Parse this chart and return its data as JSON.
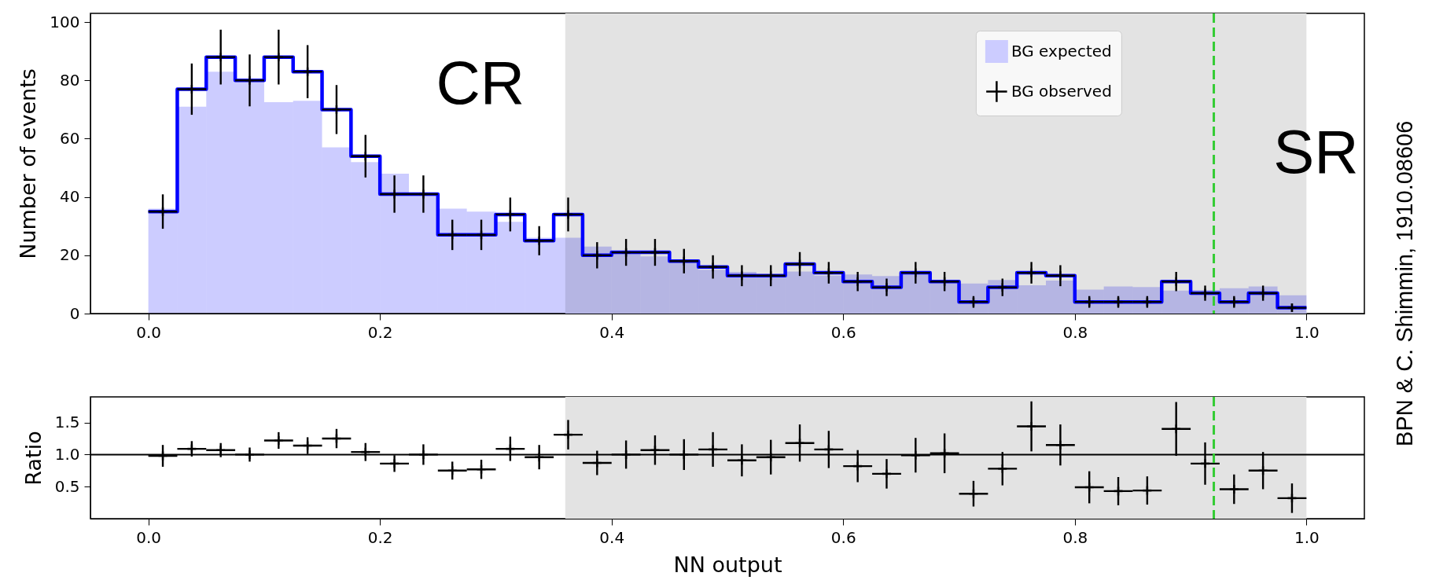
{
  "chart_data": [
    {
      "type": "histogram",
      "ylabel": "Number of events",
      "legend": "top right",
      "bins": [
        0,
        0.025,
        0.05,
        0.075,
        0.1,
        0.125,
        0.15,
        0.175,
        0.2,
        0.225,
        0.25,
        0.275,
        0.3,
        0.325,
        0.35,
        0.375,
        0.4,
        0.425,
        0.45,
        0.475,
        0.5,
        0.525,
        0.55,
        0.575,
        0.6,
        0.625,
        0.65,
        0.675,
        0.7,
        0.725,
        0.75,
        0.775,
        0.8,
        0.825,
        0.85,
        0.875,
        0.9,
        0.925,
        0.95,
        0.975,
        1.0
      ],
      "xlim": [
        -0.05,
        1.05
      ],
      "xticks": [
        {
          "value": 0,
          "label": "0.0"
        },
        {
          "value": 0.2,
          "label": "0.2"
        },
        {
          "value": 0.4,
          "label": "0.4"
        },
        {
          "value": 0.6,
          "label": "0.6"
        },
        {
          "value": 0.8,
          "label": "0.8"
        },
        {
          "value": 1,
          "label": "1.0"
        }
      ],
      "ylim": [
        0,
        103
      ],
      "yticks": [
        0,
        20,
        40,
        60,
        80,
        100
      ],
      "series": [
        {
          "name": "BG expected",
          "color": "#ccccff",
          "values": [
            36,
            71,
            83,
            80,
            72.5,
            73,
            57,
            52,
            48,
            41.5,
            36,
            35,
            31.5,
            26,
            26,
            23,
            21,
            19.6,
            18,
            15,
            14.3,
            13.5,
            14.4,
            13,
            13.4,
            12.9,
            14.1,
            10.8,
            10.3,
            11.5,
            9.7,
            11.3,
            8.2,
            9.3,
            9.1,
            7.9,
            8.1,
            8.7,
            9.3,
            6.3
          ]
        },
        {
          "type": "step",
          "color": "#0000ff",
          "x": [
            0,
            0.025,
            0.05,
            0.075,
            0.1,
            0.125,
            0.15,
            0.175,
            0.2,
            0.225,
            0.25,
            0.275,
            0.3,
            0.325,
            0.35,
            0.375,
            0.4,
            0.425,
            0.45,
            0.475,
            0.5,
            0.525,
            0.55,
            0.575,
            0.6,
            0.625,
            0.65,
            0.675,
            0.7,
            0.725,
            0.75,
            0.775,
            0.8,
            0.825,
            0.85,
            0.875,
            0.9,
            0.925,
            0.95,
            0.975,
            1.0
          ],
          "values": [
            35,
            77,
            88,
            80,
            88,
            83,
            70,
            54,
            41,
            41,
            27,
            27,
            34,
            25,
            34,
            20,
            21,
            21,
            18,
            16,
            13,
            13,
            17,
            14,
            11,
            9,
            14,
            11,
            4,
            9,
            14,
            13,
            4,
            4,
            4,
            11,
            7,
            4,
            7,
            2,
            2
          ]
        },
        {
          "type": "scatter",
          "name": "BG observed",
          "color": "#000000",
          "marker": "cross",
          "x": [
            0.0125,
            0.0375,
            0.0625,
            0.0875,
            0.1125,
            0.1375,
            0.1625,
            0.1875,
            0.2125,
            0.2375,
            0.2625,
            0.2875,
            0.3125,
            0.3375,
            0.3625,
            0.3875,
            0.4125,
            0.4375,
            0.4625,
            0.4875,
            0.5125,
            0.5375,
            0.5625,
            0.5875,
            0.6125,
            0.6375,
            0.6625,
            0.6875,
            0.7125,
            0.7375,
            0.7625,
            0.7875,
            0.8125,
            0.8375,
            0.8625,
            0.8875,
            0.9125,
            0.9375,
            0.9625,
            0.9875
          ],
          "values": [
            35,
            77,
            88,
            80,
            88,
            83,
            70,
            54,
            41,
            41,
            27,
            27,
            34,
            25,
            34,
            20,
            21,
            21,
            18,
            16,
            13,
            13,
            17,
            14,
            11,
            9,
            14,
            11,
            4,
            9,
            14,
            13,
            4,
            4,
            4,
            11,
            7,
            4,
            7,
            2
          ],
          "errors": [
            5.9,
            8.8,
            9.4,
            8.9,
            9.4,
            9.1,
            8.4,
            7.3,
            6.4,
            6.4,
            5.2,
            5.2,
            5.8,
            5,
            5.8,
            4.5,
            4.6,
            4.6,
            4.2,
            4,
            3.6,
            3.6,
            4.1,
            3.7,
            3.3,
            3,
            3.7,
            3.3,
            2,
            3,
            3.7,
            3.6,
            2,
            2,
            2,
            3.3,
            2.6,
            2,
            2.6,
            1.4
          ],
          "xerrors": [
            0.0125,
            0.0125,
            0.0125,
            0.0125,
            0.0125,
            0.0125,
            0.0125,
            0.0125,
            0.0125,
            0.0125,
            0.0125,
            0.0125,
            0.0125,
            0.0125,
            0.0125,
            0.0125,
            0.0125,
            0.0125,
            0.0125,
            0.0125,
            0.0125,
            0.0125,
            0.0125,
            0.0125,
            0.0125,
            0.0125,
            0.0125,
            0.0125,
            0.0125,
            0.0125,
            0.0125,
            0.0125,
            0.0125,
            0.0125,
            0.0125,
            0.0125,
            0.0125,
            0.0125,
            0.0125,
            0.0125
          ]
        }
      ],
      "bands": [
        {
          "axis": "x",
          "from": 0.36,
          "to": 1.0,
          "color": "#e3e3e3"
        }
      ],
      "ref_lines": [
        {
          "axis": "x",
          "value": 0.92,
          "color": "#33cc33",
          "line_style": "dashed"
        }
      ],
      "annotations": [
        "CR",
        "SR",
        "BPN & C. Shimmin, 1910.08606"
      ]
    },
    {
      "type": "scatter",
      "xlabel": "NN output",
      "ylabel": "Ratio",
      "xlim": [
        -0.05,
        1.05
      ],
      "xticks": [
        {
          "value": 0,
          "label": "0.0"
        },
        {
          "value": 0.2,
          "label": "0.2"
        },
        {
          "value": 0.4,
          "label": "0.4"
        },
        {
          "value": 0.6,
          "label": "0.6"
        },
        {
          "value": 0.8,
          "label": "0.8"
        },
        {
          "value": 1,
          "label": "1.0"
        }
      ],
      "ylim": [
        0,
        1.9
      ],
      "yticks": [
        {
          "value": 0.5,
          "label": "0.5"
        },
        {
          "value": 1,
          "label": "1.0"
        },
        {
          "value": 1.5,
          "label": "1.5"
        }
      ],
      "series": [
        {
          "color": "#000000",
          "marker": "cross",
          "x": [
            0.0125,
            0.0375,
            0.0625,
            0.0875,
            0.1125,
            0.1375,
            0.1625,
            0.1875,
            0.2125,
            0.2375,
            0.2625,
            0.2875,
            0.3125,
            0.3375,
            0.3625,
            0.3875,
            0.4125,
            0.4375,
            0.4625,
            0.4875,
            0.5125,
            0.5375,
            0.5625,
            0.5875,
            0.6125,
            0.6375,
            0.6625,
            0.6875,
            0.7125,
            0.7375,
            0.7625,
            0.7875,
            0.8125,
            0.8375,
            0.8625,
            0.8875,
            0.9125,
            0.9375,
            0.9625,
            0.9875
          ],
          "values": [
            0.98,
            1.09,
            1.07,
            1.0,
            1.22,
            1.14,
            1.25,
            1.04,
            0.86,
            1.0,
            0.75,
            0.77,
            1.09,
            0.96,
            1.31,
            0.87,
            1.0,
            1.07,
            1.0,
            1.08,
            0.91,
            0.96,
            1.18,
            1.08,
            0.82,
            0.7,
            0.99,
            1.02,
            0.39,
            0.78,
            1.44,
            1.15,
            0.49,
            0.43,
            0.44,
            1.4,
            0.86,
            0.46,
            0.75,
            0.32
          ],
          "errors": [
            0.17,
            0.12,
            0.11,
            0.11,
            0.13,
            0.13,
            0.15,
            0.14,
            0.13,
            0.16,
            0.14,
            0.15,
            0.19,
            0.19,
            0.23,
            0.19,
            0.22,
            0.23,
            0.24,
            0.27,
            0.25,
            0.27,
            0.29,
            0.29,
            0.25,
            0.23,
            0.27,
            0.31,
            0.2,
            0.26,
            0.39,
            0.32,
            0.25,
            0.22,
            0.22,
            0.42,
            0.33,
            0.23,
            0.29,
            0.23
          ],
          "xerrors": [
            0.0125,
            0.0125,
            0.0125,
            0.0125,
            0.0125,
            0.0125,
            0.0125,
            0.0125,
            0.0125,
            0.0125,
            0.0125,
            0.0125,
            0.0125,
            0.0125,
            0.0125,
            0.0125,
            0.0125,
            0.0125,
            0.0125,
            0.0125,
            0.0125,
            0.0125,
            0.0125,
            0.0125,
            0.0125,
            0.0125,
            0.0125,
            0.0125,
            0.0125,
            0.0125,
            0.0125,
            0.0125,
            0.0125,
            0.0125,
            0.0125,
            0.0125,
            0.0125,
            0.0125,
            0.0125,
            0.0125
          ]
        }
      ],
      "bands": [
        {
          "axis": "x",
          "from": 0.36,
          "to": 1.0,
          "color": "#e3e3e3"
        }
      ],
      "ref_lines": [
        {
          "axis": "y",
          "value": 1,
          "color": "#000000",
          "line_style": "solid"
        },
        {
          "axis": "x",
          "value": 0.92,
          "color": "#33cc33",
          "line_style": "dashed"
        }
      ]
    }
  ]
}
